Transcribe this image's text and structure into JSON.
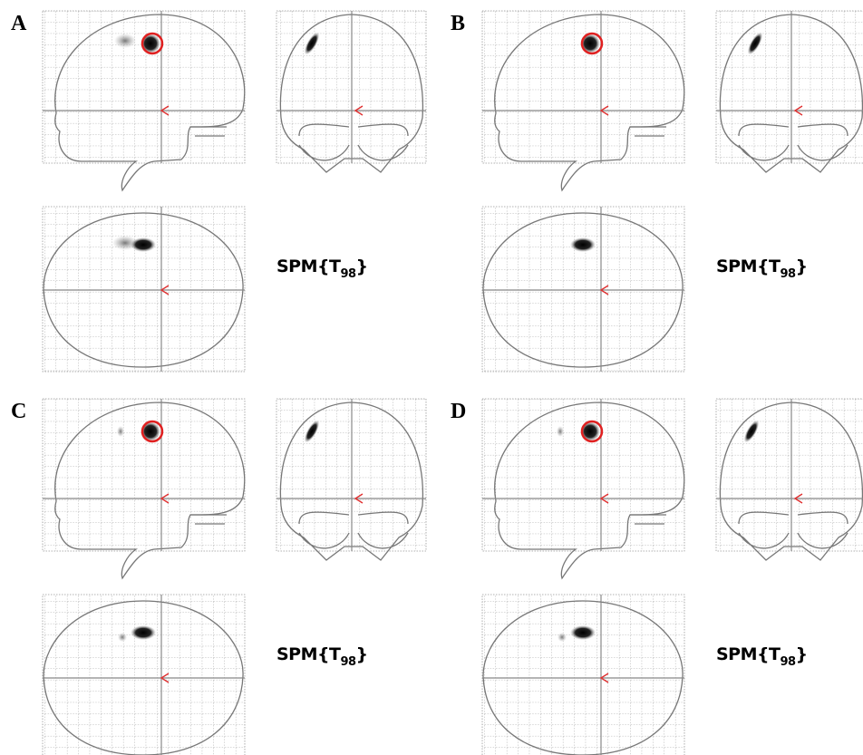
{
  "panels": [
    {
      "label": "A",
      "stat": {
        "base": "SPM{T",
        "subscript": "98",
        "close": "}"
      }
    },
    {
      "label": "B",
      "stat": {
        "base": "SPM{T",
        "subscript": "98",
        "close": "}"
      }
    },
    {
      "label": "C",
      "stat": {
        "base": "SPM{T",
        "subscript": "98",
        "close": "}"
      }
    },
    {
      "label": "D",
      "stat": {
        "base": "SPM{T",
        "subscript": "98",
        "close": "}"
      }
    }
  ]
}
